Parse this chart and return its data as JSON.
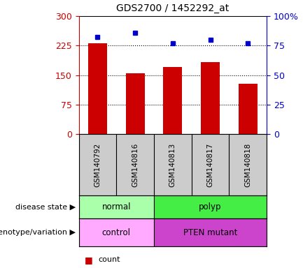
{
  "title": "GDS2700 / 1452292_at",
  "samples": [
    "GSM140792",
    "GSM140816",
    "GSM140813",
    "GSM140817",
    "GSM140818"
  ],
  "counts": [
    230,
    155,
    170,
    183,
    128
  ],
  "percentiles": [
    82,
    86,
    77,
    80,
    77
  ],
  "left_yticks": [
    0,
    75,
    150,
    225,
    300
  ],
  "right_yticks": [
    0,
    25,
    50,
    75,
    100
  ],
  "right_ytick_labels": [
    "0",
    "25",
    "50",
    "75",
    "100%"
  ],
  "bar_color": "#cc0000",
  "point_color": "#0000cc",
  "bar_width": 0.5,
  "normal_color": "#aaffaa",
  "polyp_color": "#44ee44",
  "control_color": "#ffaaff",
  "mutant_color": "#cc44cc",
  "left_axis_color": "#cc0000",
  "right_axis_color": "#0000cc",
  "bg_color": "#ffffff",
  "tick_area_color": "#cccccc",
  "grid_yticks": [
    75,
    150,
    225
  ]
}
